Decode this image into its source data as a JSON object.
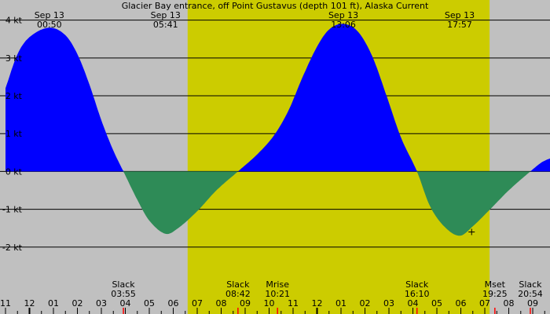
{
  "chart_data": {
    "type": "area",
    "title": "Glacier Bay entrance, off Point Gustavus (depth 101 ft), Alaska Current",
    "xlabel": "",
    "ylabel": "",
    "unit": "kt",
    "x_hour_range": [
      -13.0,
      9.95
    ],
    "ylim": [
      -3.25,
      4.2
    ],
    "y_ticks": [
      {
        "value": 4,
        "label": "4 kt"
      },
      {
        "value": 3,
        "label": "3 kt"
      },
      {
        "value": 2,
        "label": "2 kt"
      },
      {
        "value": 1,
        "label": "1 kt"
      },
      {
        "value": 0,
        "label": "0 kt"
      },
      {
        "value": -1,
        "label": "-1 kt"
      },
      {
        "value": -2,
        "label": "-2 kt"
      }
    ],
    "x_ticks": [
      {
        "hour": -13,
        "label": "11"
      },
      {
        "hour": -12,
        "label": "12"
      },
      {
        "hour": -11,
        "label": "01"
      },
      {
        "hour": -10,
        "label": "02"
      },
      {
        "hour": -9,
        "label": "03"
      },
      {
        "hour": -8,
        "label": "04"
      },
      {
        "hour": -7,
        "label": "05"
      },
      {
        "hour": -6,
        "label": "06"
      },
      {
        "hour": -5,
        "label": "07"
      },
      {
        "hour": -4,
        "label": "08"
      },
      {
        "hour": -3,
        "label": "09"
      },
      {
        "hour": -2,
        "label": "10"
      },
      {
        "hour": -1,
        "label": "11"
      },
      {
        "hour": 0,
        "label": "12"
      },
      {
        "hour": 1,
        "label": "01"
      },
      {
        "hour": 2,
        "label": "02"
      },
      {
        "hour": 3,
        "label": "03"
      },
      {
        "hour": 4,
        "label": "04"
      },
      {
        "hour": 5,
        "label": "05"
      },
      {
        "hour": 6,
        "label": "06"
      },
      {
        "hour": 7,
        "label": "07"
      },
      {
        "hour": 8,
        "label": "08"
      },
      {
        "hour": 9,
        "label": "09"
      }
    ],
    "daylight": {
      "start_hour": -5.4,
      "end_hour": 7.2
    },
    "max_events": [
      {
        "date": "Sep 13",
        "time": "00:50",
        "hour": -11.17,
        "value": 3.8
      },
      {
        "date": "Sep 13",
        "time": "13:06",
        "hour": 1.1,
        "value": 3.9
      }
    ],
    "min_events": [
      {
        "date": "Sep 13",
        "time": "05:41",
        "hour": -6.32,
        "value": -1.65
      },
      {
        "date": "Sep 13",
        "time": "17:57",
        "hour": 5.95,
        "value": -1.7
      }
    ],
    "bottom_events": [
      {
        "name": "Slack",
        "time": "03:55",
        "hour": -8.08
      },
      {
        "name": "Slack",
        "time": "08:42",
        "hour": -3.3
      },
      {
        "name": "Mrise",
        "time": "10:21",
        "hour": -1.65
      },
      {
        "name": "Slack",
        "time": "16:10",
        "hour": 4.17
      },
      {
        "name": "Mset",
        "time": "19:25",
        "hour": 7.42
      },
      {
        "name": "Slack",
        "time": "20:54",
        "hour": 8.9
      }
    ],
    "curve": [
      {
        "hour": -13.0,
        "value": 2.2
      },
      {
        "hour": -12.5,
        "value": 3.1
      },
      {
        "hour": -12.0,
        "value": 3.55
      },
      {
        "hour": -11.17,
        "value": 3.8
      },
      {
        "hour": -10.5,
        "value": 3.6
      },
      {
        "hour": -10.0,
        "value": 3.1
      },
      {
        "hour": -9.5,
        "value": 2.3
      },
      {
        "hour": -9.0,
        "value": 1.35
      },
      {
        "hour": -8.5,
        "value": 0.55
      },
      {
        "hour": -8.08,
        "value": 0.0
      },
      {
        "hour": -7.5,
        "value": -0.75
      },
      {
        "hour": -7.0,
        "value": -1.3
      },
      {
        "hour": -6.32,
        "value": -1.65
      },
      {
        "hour": -5.8,
        "value": -1.5
      },
      {
        "hour": -5.0,
        "value": -1.05
      },
      {
        "hour": -4.2,
        "value": -0.5
      },
      {
        "hour": -3.3,
        "value": 0.0
      },
      {
        "hour": -2.5,
        "value": 0.45
      },
      {
        "hour": -1.8,
        "value": 0.95
      },
      {
        "hour": -1.2,
        "value": 1.6
      },
      {
        "hour": -0.6,
        "value": 2.5
      },
      {
        "hour": 0.0,
        "value": 3.3
      },
      {
        "hour": 0.5,
        "value": 3.75
      },
      {
        "hour": 1.1,
        "value": 3.9
      },
      {
        "hour": 1.7,
        "value": 3.7
      },
      {
        "hour": 2.3,
        "value": 3.05
      },
      {
        "hour": 2.9,
        "value": 2.0
      },
      {
        "hour": 3.5,
        "value": 0.9
      },
      {
        "hour": 4.17,
        "value": 0.0
      },
      {
        "hour": 4.7,
        "value": -0.9
      },
      {
        "hour": 5.3,
        "value": -1.45
      },
      {
        "hour": 5.95,
        "value": -1.7
      },
      {
        "hour": 6.5,
        "value": -1.45
      },
      {
        "hour": 7.3,
        "value": -0.95
      },
      {
        "hour": 8.0,
        "value": -0.5
      },
      {
        "hour": 8.9,
        "value": 0.0
      },
      {
        "hour": 9.4,
        "value": 0.25
      },
      {
        "hour": 9.95,
        "value": 0.4
      }
    ],
    "marker": {
      "hour": 6.45,
      "value": -1.6
    },
    "grid": true,
    "colors": {
      "background": "#c0c0c0",
      "daylight": "#cccc00",
      "flood": "#0000ff",
      "ebb": "#2e8b57",
      "gridline": "#000000",
      "event_tick": "#ff0000"
    }
  }
}
